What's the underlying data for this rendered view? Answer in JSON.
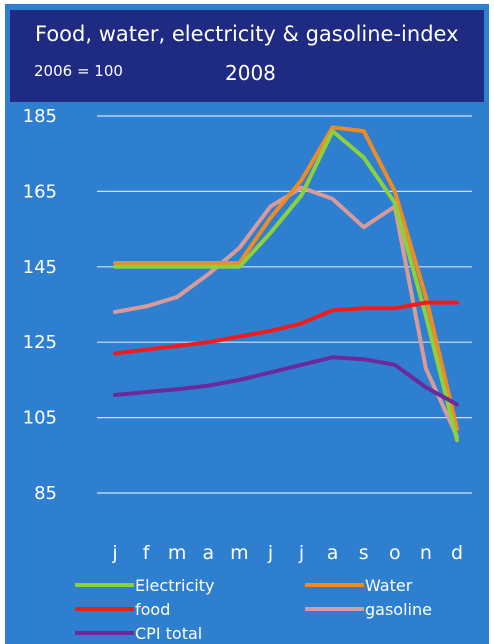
{
  "header": {
    "title": "Food, water, electricity & gasoline-index",
    "baseline_note": "2006 = 100",
    "year": "2008"
  },
  "chart_data": {
    "type": "line",
    "title": "Food, water, electricity & gasoline-index",
    "subtitle": "2006 = 100",
    "period": "2008",
    "categories": [
      "j",
      "f",
      "m",
      "a",
      "m",
      "j",
      "j",
      "a",
      "s",
      "o",
      "n",
      "d"
    ],
    "ylim": [
      85,
      185
    ],
    "yticks": [
      85,
      105,
      125,
      145,
      165,
      185
    ],
    "grid": true,
    "legend_position": "bottom",
    "series": [
      {
        "name": "Electricity",
        "color": "#8bd13e",
        "values": [
          145,
          145,
          145,
          145,
          145,
          154,
          164,
          181,
          174,
          162,
          132,
          99
        ]
      },
      {
        "name": "Water",
        "color": "#f08a24",
        "values": [
          146,
          146,
          146,
          146,
          146,
          158,
          168,
          182,
          181,
          165,
          137,
          102
        ]
      },
      {
        "name": "food",
        "color": "#ee1c1c",
        "values": [
          122,
          123,
          124,
          125,
          126.5,
          128,
          130,
          133.5,
          134,
          134,
          135.5,
          135.5
        ]
      },
      {
        "name": "gasoline",
        "color": "#d99a9a",
        "values": [
          133,
          134.5,
          137,
          143,
          150,
          161,
          166,
          163,
          155.5,
          161,
          118,
          100
        ]
      },
      {
        "name": "CPI total",
        "color": "#6a2a9c",
        "values": [
          111,
          111.8,
          112.5,
          113.5,
          115,
          117,
          119,
          121,
          120.5,
          119,
          113,
          108.5
        ]
      }
    ]
  }
}
